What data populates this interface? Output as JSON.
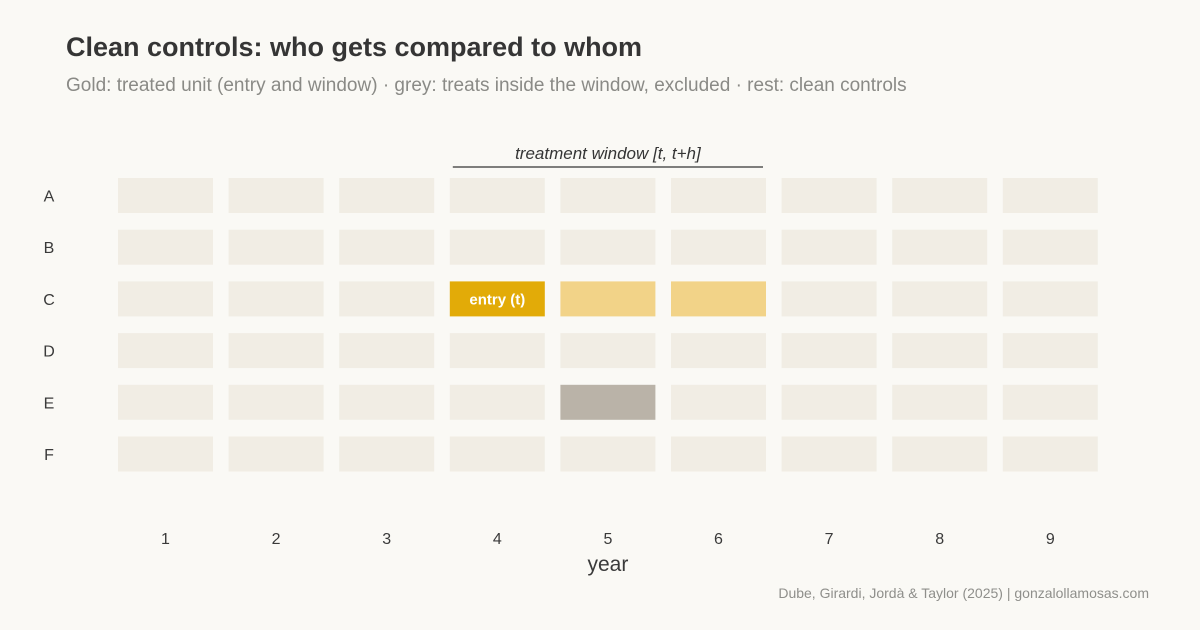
{
  "title": "Clean controls: who gets compared to whom",
  "subtitle": "Gold: treated unit (entry and window) · grey: treats inside the window, excluded · rest: clean controls",
  "caption": "Dube, Girardi, Jordà & Taylor (2025)  |  gonzalollamosas.com",
  "chart_data": {
    "type": "heatmap",
    "xlabel": "year",
    "ylabel": "",
    "x_categories": [
      "1",
      "2",
      "3",
      "4",
      "5",
      "6",
      "7",
      "8",
      "9"
    ],
    "y_categories": [
      "A",
      "B",
      "C",
      "D",
      "E",
      "F"
    ],
    "window_annotation": {
      "label": "treatment window [t, t+h]",
      "from": "4",
      "to": "6"
    },
    "highlighted_cells": [
      {
        "unit": "C",
        "year": "4",
        "category": "entry",
        "label": "entry (t)",
        "color": "#e2ab08"
      },
      {
        "unit": "C",
        "year": "5",
        "category": "window",
        "label": "",
        "color": "#f2d388"
      },
      {
        "unit": "C",
        "year": "6",
        "category": "window",
        "label": "",
        "color": "#f2d388"
      },
      {
        "unit": "E",
        "year": "5",
        "category": "excluded",
        "label": "",
        "color": "#bab3a8"
      }
    ],
    "default_cell_color": "#f1ede4",
    "grid": false,
    "legend": "none"
  }
}
